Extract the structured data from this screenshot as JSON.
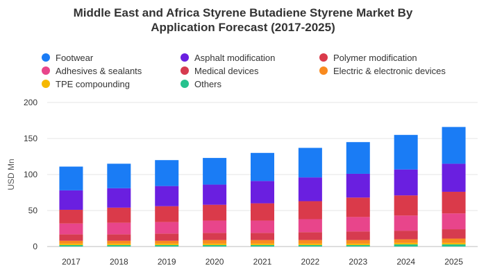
{
  "chart_data": {
    "type": "bar",
    "stacked": true,
    "title": "Middle East and Africa Styrene Butadiene Styrene Market By Application Forecast (2017-2025)",
    "title_lines": [
      "Middle East and Africa Styrene Butadiene Styrene Market By",
      "Application Forecast (2017-2025)"
    ],
    "xlabel": "",
    "ylabel": "USD Mn",
    "ylim": [
      0,
      200
    ],
    "yticks": [
      0,
      50,
      100,
      150,
      200
    ],
    "grid": true,
    "legend_position": "top",
    "categories": [
      "2017",
      "2018",
      "2019",
      "2020",
      "2021",
      "2022",
      "2023",
      "2024",
      "2025"
    ],
    "series": [
      {
        "name": "Others",
        "color": "#26c28e",
        "values": [
          2,
          2,
          2,
          2,
          2,
          2,
          2,
          3,
          3
        ]
      },
      {
        "name": "TPE compounding",
        "color": "#f5b800",
        "values": [
          2,
          2,
          2,
          2,
          2,
          2,
          2,
          2,
          2
        ]
      },
      {
        "name": "Electric & electronic devices",
        "color": "#f98a1e",
        "values": [
          4,
          4,
          4,
          5,
          5,
          5,
          5,
          5,
          6
        ]
      },
      {
        "name": "Medical devices",
        "color": "#d63b4f",
        "values": [
          9,
          9,
          10,
          10,
          10,
          11,
          12,
          12,
          13
        ]
      },
      {
        "name": "Adhesives & sealants",
        "color": "#e8458b",
        "values": [
          15,
          16,
          16,
          17,
          17,
          18,
          20,
          21,
          22
        ]
      },
      {
        "name": "Polymer modification",
        "color": "#da3a4a",
        "values": [
          19,
          21,
          22,
          22,
          24,
          25,
          27,
          28,
          30
        ]
      },
      {
        "name": "Asphalt modification",
        "color": "#6a1fe0",
        "values": [
          27,
          27,
          28,
          28,
          31,
          33,
          33,
          36,
          39
        ]
      },
      {
        "name": "Footwear",
        "color": "#1a7cf5",
        "values": [
          33,
          34,
          36,
          37,
          39,
          41,
          44,
          48,
          51
        ]
      }
    ]
  },
  "legend": [
    {
      "label": "Footwear",
      "color": "#1a7cf5"
    },
    {
      "label": "Asphalt modification",
      "color": "#6a1fe0"
    },
    {
      "label": "Polymer modification",
      "color": "#da3a4a"
    },
    {
      "label": "Adhesives & sealants",
      "color": "#e8458b"
    },
    {
      "label": "Medical devices",
      "color": "#d63b4f"
    },
    {
      "label": "Electric & electronic devices",
      "color": "#f98a1e"
    },
    {
      "label": "TPE compounding",
      "color": "#f5b800"
    },
    {
      "label": "Others",
      "color": "#26c28e"
    }
  ]
}
